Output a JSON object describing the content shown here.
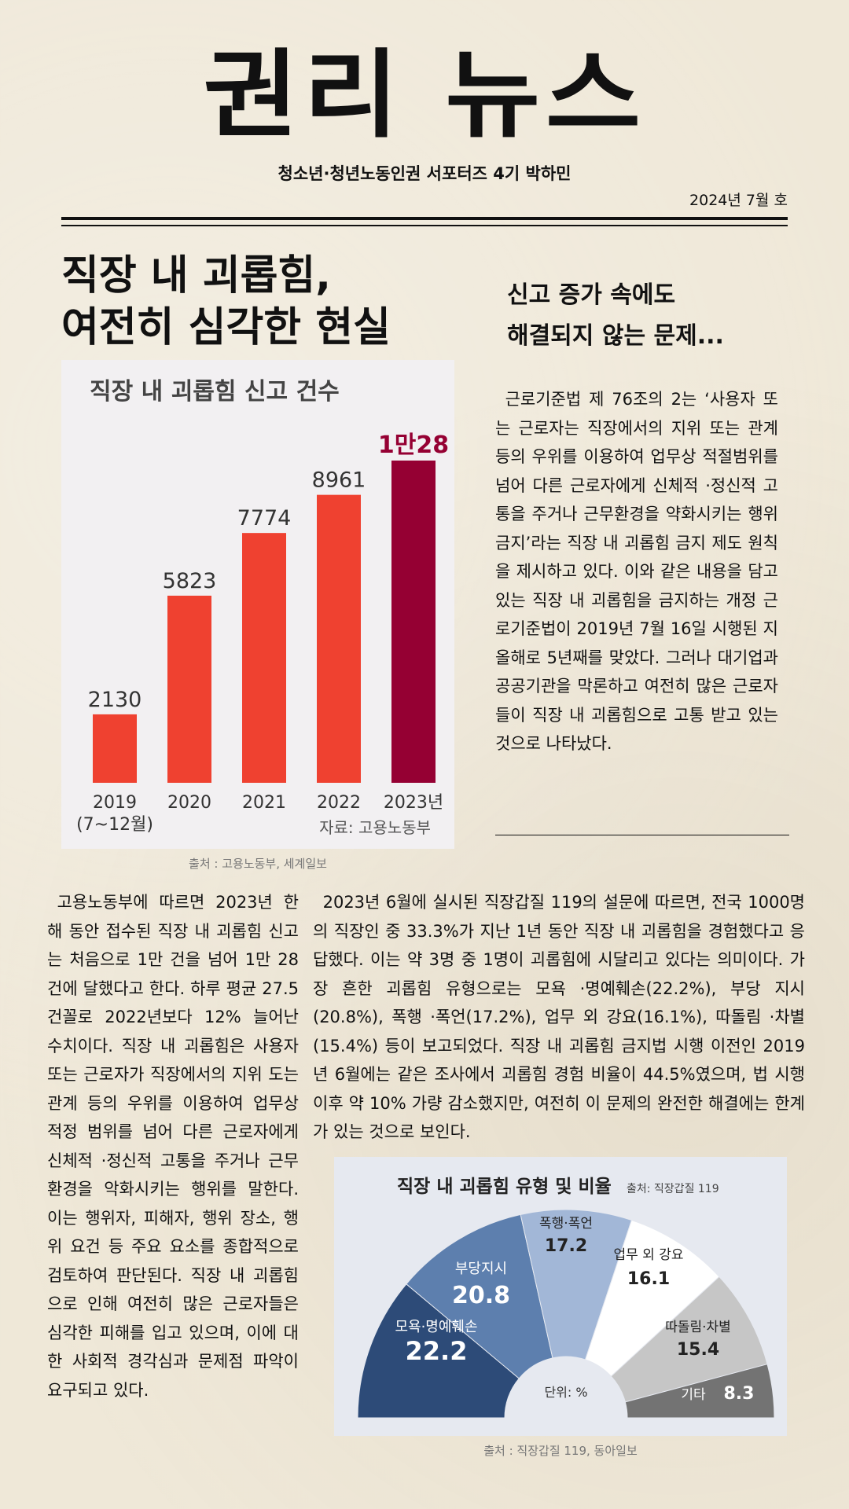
{
  "masthead": {
    "title": "권리 뉴스",
    "subtitle": "청소년·청년노동인권 서포터즈 4기 박하민",
    "issue": "2024년 7월 호"
  },
  "article": {
    "headline_line1": "직장 내 괴롭힘,",
    "headline_line2": "여전히 심각한 현실",
    "subhead_line1": "신고 증가 속에도",
    "subhead_line2": "해결되지 않는 문제...",
    "paragraph_right": "근로기준법 제 76조의 2는 ‘사용자 또는 근로자는 직장에서의 지위 또는 관계 등의 우위를 이용하여 업무상 적절범위를 넘어 다른 근로자에게 신체적 ·정신적 고통을 주거나 근무환경을 약화시키는 행위 금지’라는 직장 내 괴롭힘 금지 제도 원칙을 제시하고 있다. 이와 같은 내용을 담고 있는 직장 내 괴롭힘을 금지하는 개정 근로기준법이 2019년 7월 16일 시행된 지 올해로 5년째를 맞았다. 그러나 대기업과 공공기관을 막론하고 여전히 많은 근로자들이 직장 내 괴롭힘으로 고통 받고 있는 것으로 나타났다.",
    "paragraph_left": "고용노동부에 따르면 2023년 한 해 동안 접수된 직장 내 괴롭힘 신고는 처음으로 1만 건을 넘어 1만 28건에 달했다고 한다. 하루 평균 27.5건꼴로 2022년보다 12% 늘어난 수치이다. 직장 내 괴롭힘은 사용자 또는 근로자가 직장에서의 지위 도는 관계 등의 우위를 이용하여 업무상 적정 범위를 넘어 다른 근로자에게 신체적 ·정신적 고통을 주거나 근무환경을 악화시키는 행위를 말한다. 이는 행위자, 피해자, 행위 장소, 행위 요건 등 주요 요소를 종합적으로 검토하여 판단된다. 직장 내 괴롭힘으로 인해 여전히 많은 근로자들은 심각한 피해를 입고 있으며, 이에 대한 사회적 경각심과 문제점 파악이 요구되고 있다.",
    "paragraph_mid": "2023년 6월에 실시된 직장갑질 119의 설문에 따르면, 전국 1000명의 직장인 중 33.3%가 지난 1년 동안 직장 내 괴롭힘을 경험했다고 응답했다. 이는 약 3명 중 1명이 괴롭힘에 시달리고 있다는 의미이다. 가장 흔한 괴롭힘 유형으로는 모욕 ·명예훼손(22.2%), 부당 지시(20.8%), 폭행 ·폭언(17.2%), 업무 외 강요(16.1%), 따돌림 ·차별(15.4%) 등이 보고되었다. 직장 내 괴롭힘 금지법 시행 이전인 2019년 6월에는 같은 조사에서 괴롭힘 경험 비율이 44.5%였으며, 법 시행 이후 약 10% 가량 감소했지만, 여전히 이 문제의 완전한 해결에는 한계가 있는 것으로 보인다.",
    "caption1": "출처 : 고용노동부, 세계일보",
    "caption2": "출처 : 직장갑질 119, 동아일보"
  },
  "chart_data": [
    {
      "type": "bar",
      "title": "직장 내 괴롭힘 신고 건수",
      "categories": [
        "2019\n(7~12월)",
        "2020",
        "2021",
        "2022",
        "2023년"
      ],
      "values": [
        2130,
        5823,
        7774,
        8961,
        10028
      ],
      "data_labels": [
        "2130",
        "5823",
        "7774",
        "8961",
        "1만28"
      ],
      "source": "자료: 고용노동부",
      "ylim": [
        0,
        10028
      ],
      "colors": {
        "bar": "#ef4130",
        "highlight": "#950033"
      }
    },
    {
      "type": "pie",
      "title": "직장 내 괴롭힘 유형 및 비율",
      "source": "출처: 직장갑질 119",
      "unit": "단위: %",
      "slices": [
        {
          "label": "모욕·명예훼손",
          "value": 22.2,
          "color": "#2d4b78"
        },
        {
          "label": "부당지시",
          "value": 20.8,
          "color": "#5d7fae"
        },
        {
          "label": "폭행·폭언",
          "value": 17.2,
          "color": "#a2b7d7"
        },
        {
          "label": "업무 외 강요",
          "value": 16.1,
          "color": "#ffffff"
        },
        {
          "label": "따돌림·차별",
          "value": 15.4,
          "color": "#c6c6c6"
        },
        {
          "label": "기타",
          "value": 8.3,
          "color": "#737373"
        }
      ]
    }
  ]
}
